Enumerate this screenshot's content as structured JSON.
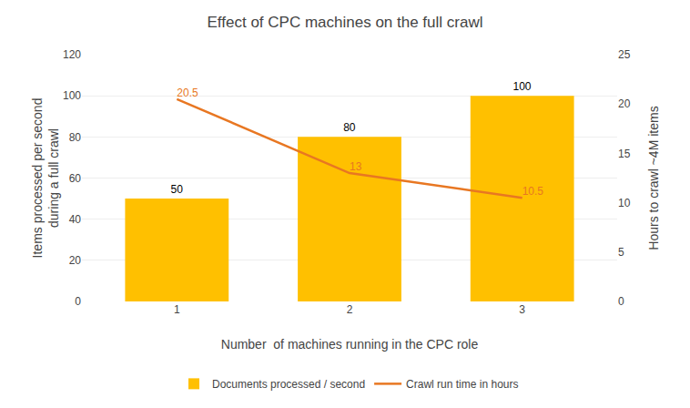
{
  "chart_data": {
    "type": "bar",
    "title": "Effect of CPC machines on the full crawl",
    "x": [
      1,
      2,
      3
    ],
    "xlabel": "Number  of machines running in the CPC role",
    "ylabel": "Items processed per second\nduring a full crawl",
    "y2label": "Hours to crawl ~4M items",
    "xlim": [
      0.45,
      3.55
    ],
    "xticks": [
      1,
      2,
      3
    ],
    "ylim": [
      0,
      120
    ],
    "yticks": [
      0,
      20,
      40,
      60,
      80,
      100,
      120
    ],
    "y2lim": [
      0,
      25
    ],
    "y2ticks": [
      0,
      5,
      10,
      15,
      20,
      25
    ],
    "grid": true,
    "legend": "bottom",
    "data_labels": true,
    "series": [
      {
        "name": "Documents processed / second",
        "type": "bar",
        "color": "#FFC000",
        "values": [
          50,
          80,
          100
        ]
      },
      {
        "name": "Crawl run time in hours",
        "type": "line",
        "color": "#E87722",
        "axis": "y2",
        "values": [
          20.5,
          13,
          10.5
        ]
      }
    ]
  }
}
